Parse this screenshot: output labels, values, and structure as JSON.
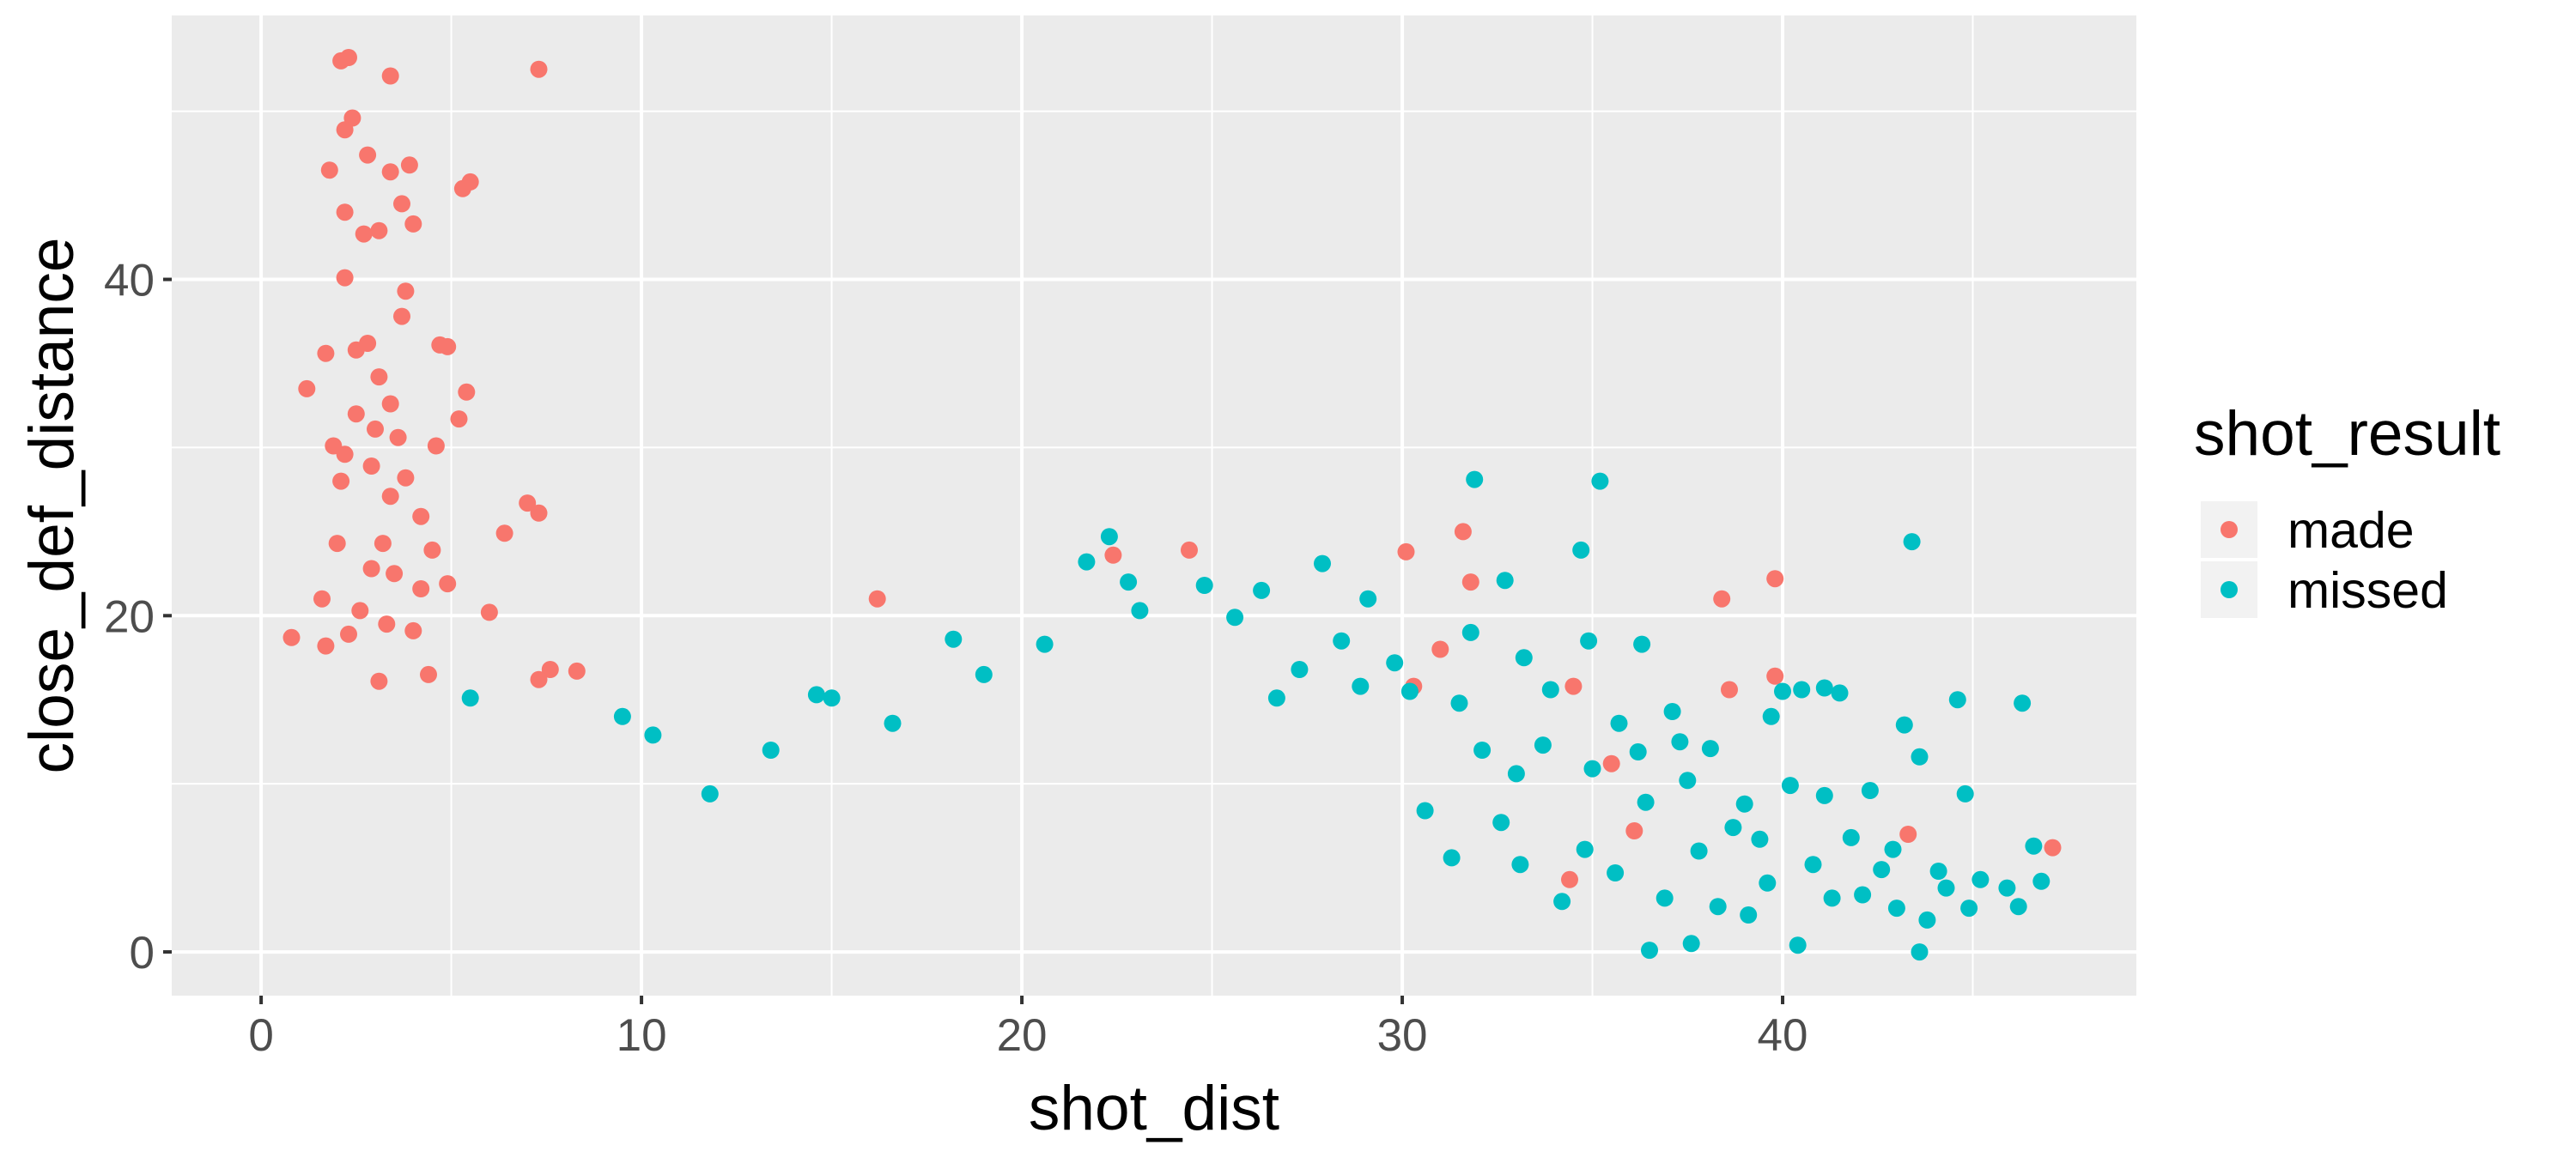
{
  "chart_data": {
    "type": "scatter",
    "title": "",
    "xlabel": "shot_dist",
    "ylabel": "close_def_distance",
    "xlim": [
      -2.35,
      49.3
    ],
    "ylim": [
      -2.6,
      55.7
    ],
    "x_ticks": [
      0,
      10,
      20,
      30,
      40
    ],
    "y_ticks": [
      0,
      20,
      40
    ],
    "grid": true,
    "legend": {
      "title": "shot_result",
      "placement": "right",
      "entries": [
        {
          "label": "made",
          "color": "#F8766D"
        },
        {
          "label": "missed",
          "color": "#00BFC4"
        }
      ]
    },
    "series": [
      {
        "name": "made",
        "color": "#F8766D",
        "points": [
          [
            2.1,
            53.0
          ],
          [
            2.3,
            53.2
          ],
          [
            3.4,
            52.1
          ],
          [
            7.3,
            52.5
          ],
          [
            2.4,
            49.6
          ],
          [
            2.2,
            48.9
          ],
          [
            2.8,
            47.4
          ],
          [
            3.9,
            46.8
          ],
          [
            1.8,
            46.5
          ],
          [
            5.5,
            45.8
          ],
          [
            5.3,
            45.4
          ],
          [
            3.4,
            46.4
          ],
          [
            2.2,
            44.0
          ],
          [
            3.7,
            44.5
          ],
          [
            4.0,
            43.3
          ],
          [
            2.7,
            42.7
          ],
          [
            3.1,
            42.9
          ],
          [
            2.2,
            40.1
          ],
          [
            3.8,
            39.3
          ],
          [
            3.7,
            37.8
          ],
          [
            4.7,
            36.1
          ],
          [
            4.9,
            36.0
          ],
          [
            1.7,
            35.6
          ],
          [
            2.5,
            35.8
          ],
          [
            2.8,
            36.2
          ],
          [
            3.1,
            34.2
          ],
          [
            1.2,
            33.5
          ],
          [
            5.4,
            33.3
          ],
          [
            3.4,
            32.6
          ],
          [
            2.5,
            32.0
          ],
          [
            3.0,
            31.1
          ],
          [
            5.2,
            31.7
          ],
          [
            1.9,
            30.1
          ],
          [
            2.2,
            29.6
          ],
          [
            3.6,
            30.6
          ],
          [
            4.6,
            30.1
          ],
          [
            2.9,
            28.9
          ],
          [
            3.8,
            28.2
          ],
          [
            2.1,
            28.0
          ],
          [
            3.4,
            27.1
          ],
          [
            7.0,
            26.7
          ],
          [
            7.3,
            26.1
          ],
          [
            4.2,
            25.9
          ],
          [
            6.4,
            24.9
          ],
          [
            3.2,
            24.3
          ],
          [
            2.0,
            24.3
          ],
          [
            4.5,
            23.9
          ],
          [
            2.9,
            22.8
          ],
          [
            3.5,
            22.5
          ],
          [
            4.9,
            21.9
          ],
          [
            4.2,
            21.6
          ],
          [
            1.6,
            21.0
          ],
          [
            6.0,
            20.2
          ],
          [
            2.6,
            20.3
          ],
          [
            3.3,
            19.5
          ],
          [
            4.0,
            19.1
          ],
          [
            2.3,
            18.9
          ],
          [
            0.8,
            18.7
          ],
          [
            1.7,
            18.2
          ],
          [
            7.6,
            16.8
          ],
          [
            8.3,
            16.7
          ],
          [
            7.3,
            16.2
          ],
          [
            4.4,
            16.5
          ],
          [
            3.1,
            16.1
          ],
          [
            16.2,
            21.0
          ],
          [
            22.4,
            23.6
          ],
          [
            24.4,
            23.9
          ],
          [
            31.6,
            25.0
          ],
          [
            30.1,
            23.8
          ],
          [
            31.8,
            22.0
          ],
          [
            39.8,
            22.2
          ],
          [
            38.4,
            21.0
          ],
          [
            34.5,
            15.8
          ],
          [
            39.8,
            16.4
          ],
          [
            38.6,
            15.6
          ],
          [
            31.0,
            18.0
          ],
          [
            30.3,
            15.8
          ],
          [
            43.3,
            7.0
          ],
          [
            47.1,
            6.2
          ],
          [
            34.4,
            4.3
          ],
          [
            35.5,
            11.2
          ],
          [
            36.1,
            7.2
          ]
        ]
      },
      {
        "name": "missed",
        "color": "#00BFC4",
        "points": [
          [
            31.9,
            28.1
          ],
          [
            35.2,
            28.0
          ],
          [
            43.4,
            24.4
          ],
          [
            34.7,
            23.9
          ],
          [
            32.7,
            22.1
          ],
          [
            31.8,
            19.0
          ],
          [
            34.9,
            18.5
          ],
          [
            36.3,
            18.3
          ],
          [
            33.2,
            17.5
          ],
          [
            27.9,
            23.1
          ],
          [
            29.1,
            21.0
          ],
          [
            28.4,
            18.5
          ],
          [
            26.7,
            15.1
          ],
          [
            29.8,
            17.2
          ],
          [
            28.9,
            15.8
          ],
          [
            30.2,
            15.5
          ],
          [
            31.5,
            14.8
          ],
          [
            33.9,
            15.6
          ],
          [
            37.1,
            14.3
          ],
          [
            35.7,
            13.6
          ],
          [
            38.1,
            12.1
          ],
          [
            39.7,
            14.0
          ],
          [
            40.0,
            15.5
          ],
          [
            40.5,
            15.6
          ],
          [
            41.1,
            15.7
          ],
          [
            41.5,
            15.4
          ],
          [
            43.2,
            13.5
          ],
          [
            43.6,
            11.6
          ],
          [
            46.3,
            14.8
          ],
          [
            44.6,
            15.0
          ],
          [
            37.3,
            12.5
          ],
          [
            36.2,
            11.9
          ],
          [
            35.0,
            10.9
          ],
          [
            33.7,
            12.3
          ],
          [
            33.0,
            10.6
          ],
          [
            32.1,
            12.0
          ],
          [
            37.5,
            10.2
          ],
          [
            39.0,
            8.8
          ],
          [
            40.2,
            9.9
          ],
          [
            41.1,
            9.3
          ],
          [
            42.3,
            9.6
          ],
          [
            44.8,
            9.4
          ],
          [
            38.7,
            7.4
          ],
          [
            39.4,
            6.7
          ],
          [
            41.8,
            6.8
          ],
          [
            42.9,
            6.1
          ],
          [
            44.1,
            4.8
          ],
          [
            45.2,
            4.3
          ],
          [
            45.9,
            3.8
          ],
          [
            46.6,
            6.3
          ],
          [
            46.8,
            4.2
          ],
          [
            46.2,
            2.7
          ],
          [
            44.9,
            2.6
          ],
          [
            43.8,
            1.9
          ],
          [
            43.0,
            2.6
          ],
          [
            42.1,
            3.4
          ],
          [
            40.4,
            0.4
          ],
          [
            43.6,
            0.0
          ],
          [
            37.6,
            0.5
          ],
          [
            36.5,
            0.1
          ],
          [
            36.9,
            3.2
          ],
          [
            38.3,
            2.7
          ],
          [
            39.6,
            4.1
          ],
          [
            41.3,
            3.2
          ],
          [
            35.6,
            4.7
          ],
          [
            34.2,
            3.0
          ],
          [
            33.1,
            5.2
          ],
          [
            32.6,
            7.7
          ],
          [
            31.3,
            5.6
          ],
          [
            30.6,
            8.4
          ],
          [
            34.8,
            6.1
          ],
          [
            36.4,
            8.9
          ],
          [
            37.8,
            6.0
          ],
          [
            39.1,
            2.2
          ],
          [
            40.8,
            5.2
          ],
          [
            42.6,
            4.9
          ],
          [
            44.3,
            3.8
          ],
          [
            15.0,
            15.1
          ],
          [
            18.2,
            18.6
          ],
          [
            20.6,
            18.3
          ],
          [
            22.3,
            24.7
          ],
          [
            22.8,
            22.0
          ],
          [
            24.8,
            21.8
          ],
          [
            26.3,
            21.5
          ],
          [
            21.7,
            23.2
          ],
          [
            9.5,
            14.0
          ],
          [
            5.5,
            15.1
          ],
          [
            10.3,
            12.9
          ],
          [
            14.6,
            15.3
          ],
          [
            16.6,
            13.6
          ],
          [
            19.0,
            16.5
          ],
          [
            23.1,
            20.3
          ],
          [
            25.6,
            19.9
          ],
          [
            27.3,
            16.8
          ],
          [
            13.4,
            12.0
          ],
          [
            11.8,
            9.4
          ]
        ]
      }
    ]
  }
}
